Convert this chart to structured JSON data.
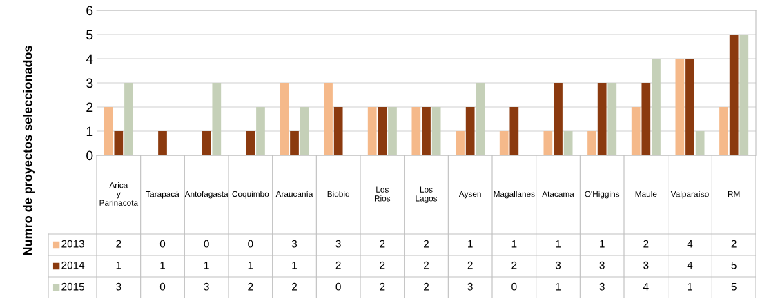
{
  "chart_data": {
    "type": "bar",
    "ylabel": "Numro de proyectos seleccionados",
    "categories": [
      "Arica y Parinacota",
      "Tarapacá",
      "Antofagasta",
      "Coquimbo",
      "Araucanía",
      "Biobio",
      "Los Rios",
      "Los Lagos",
      "Aysen",
      "Magallanes",
      "Atacama",
      "O'Higgins",
      "Maule",
      "Valparaíso",
      "RM"
    ],
    "series": [
      {
        "name": "2013",
        "color": "#f5b98a",
        "values": [
          2,
          0,
          0,
          0,
          3,
          3,
          2,
          2,
          1,
          1,
          1,
          1,
          2,
          4,
          2
        ]
      },
      {
        "name": "2014",
        "color": "#8b3a0f",
        "values": [
          1,
          1,
          1,
          1,
          1,
          2,
          2,
          2,
          2,
          2,
          3,
          3,
          3,
          4,
          5
        ]
      },
      {
        "name": "2015",
        "color": "#c5d0b8",
        "values": [
          3,
          0,
          3,
          2,
          2,
          0,
          2,
          2,
          3,
          0,
          1,
          3,
          4,
          1,
          5
        ]
      }
    ],
    "ylim": [
      0,
      6
    ],
    "yticks": [
      0,
      1,
      2,
      3,
      4,
      5,
      6
    ],
    "grid": "y",
    "data_labels": true,
    "legend": "bottom"
  }
}
